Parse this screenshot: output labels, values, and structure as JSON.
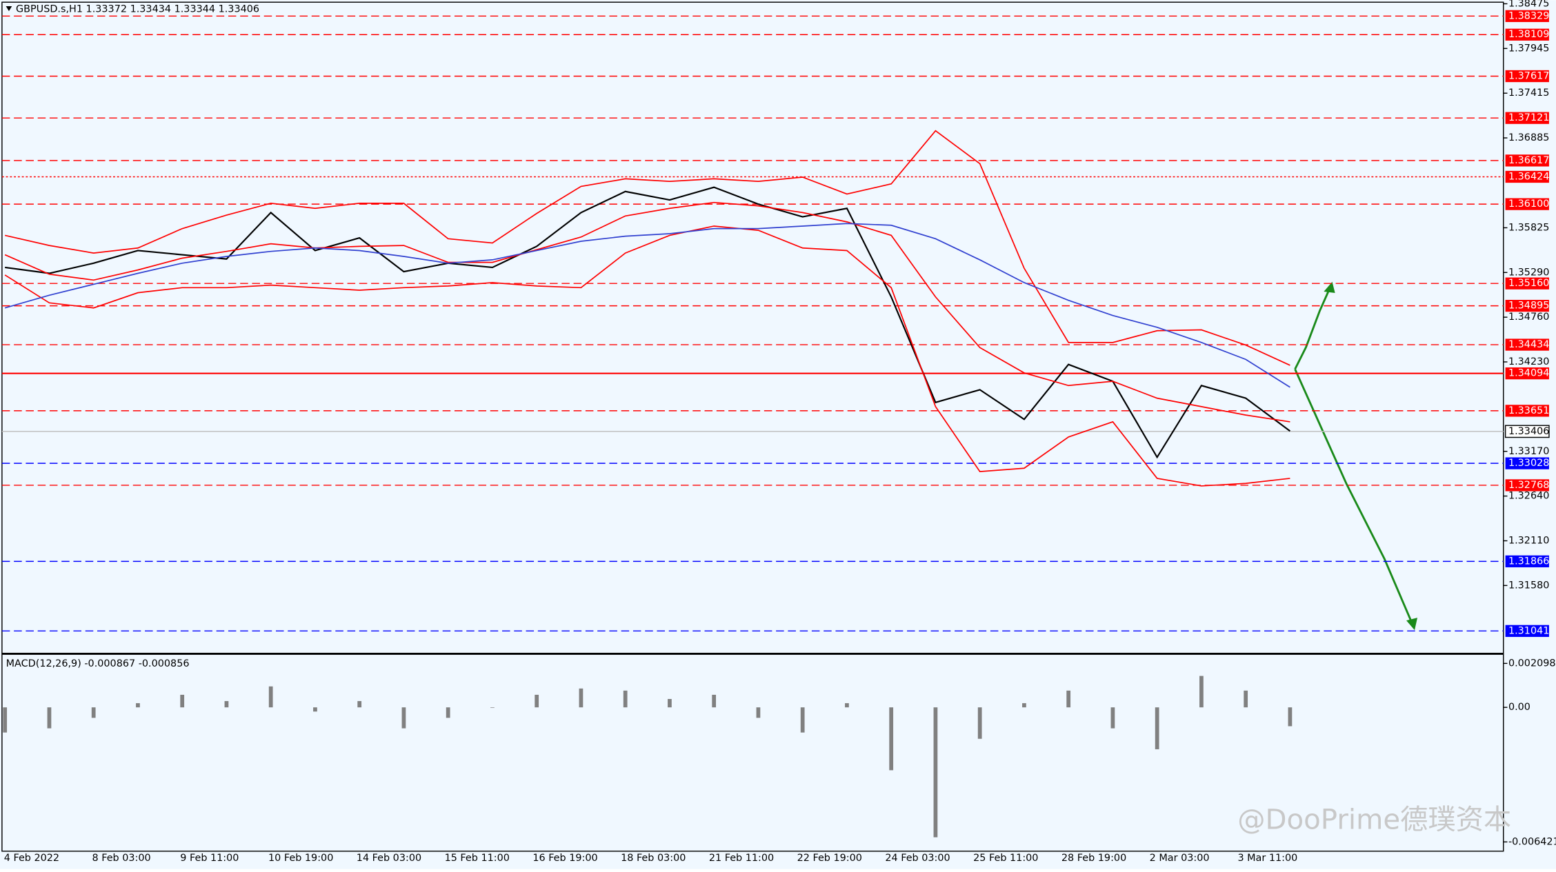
{
  "chart_data": {
    "type": "line",
    "title": "GBPUSD.s,H1  1.33372 1.33434 1.33344 1.33406",
    "categories": [
      null,
      null,
      null,
      null,
      null,
      null,
      null,
      null,
      null,
      null,
      null,
      null,
      null,
      null,
      null,
      null,
      null,
      null,
      null,
      null,
      null,
      null,
      null,
      null,
      null,
      null,
      null,
      null,
      null,
      null
    ],
    "x_labels": [
      "4 Feb 2022",
      "8 Feb 03:00",
      "9 Feb 11:00",
      "10 Feb 19:00",
      "14 Feb 03:00",
      "15 Feb 11:00",
      "16 Feb 19:00",
      "18 Feb 03:00",
      "21 Feb 11:00",
      "22 Feb 19:00",
      "24 Feb 03:00",
      "25 Feb 11:00",
      "28 Feb 19:00",
      "2 Mar 03:00",
      "3 Mar 11:00"
    ],
    "series": [
      {
        "color": "#000000",
        "values": [
          1.3535,
          1.3528,
          1.354,
          1.3555,
          1.355,
          1.3545,
          1.36,
          1.3555,
          1.357,
          1.353,
          1.354,
          1.3535,
          1.356,
          1.36,
          1.3625,
          1.3615,
          1.363,
          1.361,
          1.3595,
          1.3605,
          1.35,
          1.3375,
          1.339,
          1.3355,
          1.342,
          1.34,
          1.331,
          1.3395,
          1.338,
          1.3341
        ]
      },
      {
        "color": "#ff0000",
        "values": [
          1.3573,
          1.3561,
          1.3552,
          1.3558,
          1.3581,
          1.3597,
          1.3611,
          1.3605,
          1.3611,
          1.3611,
          1.3569,
          1.3564,
          1.3599,
          1.3631,
          1.364,
          1.3637,
          1.364,
          1.3637,
          1.3642,
          1.3622,
          1.3634,
          1.3697,
          1.3658,
          1.3534,
          1.3446,
          1.3446,
          1.346,
          1.3461,
          1.3443,
          1.3419
        ]
      },
      {
        "color": "#ff0000",
        "values": [
          1.355,
          1.3527,
          1.352,
          1.3532,
          1.3546,
          1.3554,
          1.3563,
          1.3558,
          1.356,
          1.3561,
          1.3541,
          1.3541,
          1.3556,
          1.3571,
          1.3596,
          1.3605,
          1.3612,
          1.3608,
          1.36,
          1.3589,
          1.3573,
          1.35,
          1.344,
          1.341,
          1.3395,
          1.34,
          1.338,
          1.337,
          1.336,
          1.3352
        ]
      },
      {
        "color": "#ff0000",
        "values": [
          1.3526,
          1.3493,
          1.3487,
          1.3505,
          1.3511,
          1.3511,
          1.3514,
          1.3511,
          1.3508,
          1.3511,
          1.3513,
          1.3517,
          1.3513,
          1.3511,
          1.3552,
          1.3573,
          1.3584,
          1.3579,
          1.3558,
          1.3555,
          1.3511,
          1.337,
          1.3293,
          1.3297,
          1.3334,
          1.3352,
          1.3285,
          1.3276,
          1.3279,
          1.3285
        ]
      },
      {
        "color": "#3040d0",
        "values": [
          1.3487,
          1.3502,
          1.3515,
          1.3528,
          1.354,
          1.3548,
          1.3554,
          1.3558,
          1.3555,
          1.3548,
          1.354,
          1.3544,
          1.3555,
          1.3566,
          1.3572,
          1.3575,
          1.3581,
          1.3581,
          1.3584,
          1.3587,
          1.3585,
          1.3569,
          1.3544,
          1.3517,
          1.3496,
          1.3478,
          1.3464,
          1.3446,
          1.3426,
          1.3393
        ]
      }
    ],
    "ylim": [
      1.30782,
      1.38517
    ],
    "yticks": [
      1.38475,
      1.37945,
      1.37415,
      1.36885,
      {
        "value": 1.3582,
        "label": "1.35825"
      },
      {
        "value": 1.3529,
        "label": "1.35290"
      },
      {
        "value": 1.3476,
        "label": "1.34760"
      },
      {
        "value": 1.3423,
        "label": "1.34230"
      },
      {
        "value": 1.3317,
        "label": "1.33170"
      },
      {
        "value": 1.3264,
        "label": "1.32640"
      },
      {
        "value": 1.3211,
        "label": "1.32110"
      },
      {
        "value": 1.3158,
        "label": "1.31580"
      }
    ],
    "levels": [
      {
        "value": 1.38329,
        "color": "#ff0000",
        "style": "dash"
      },
      {
        "value": 1.38109,
        "color": "#ff0000",
        "style": "dash"
      },
      {
        "value": 1.37617,
        "color": "#ff0000",
        "style": "dash"
      },
      {
        "value": 1.37121,
        "color": "#ff0000",
        "style": "dash"
      },
      {
        "value": 1.36617,
        "color": "#ff0000",
        "style": "dash"
      },
      {
        "value": 1.36424,
        "color": "#ff0000",
        "style": "dot"
      },
      {
        "value": 1.361,
        "label": "1.36100",
        "color": "#ff0000",
        "style": "dash"
      },
      {
        "value": 1.3516,
        "label": "1.35160",
        "color": "#ff0000",
        "style": "dash"
      },
      {
        "value": 1.34895,
        "color": "#ff0000",
        "style": "dash"
      },
      {
        "value": 1.34434,
        "color": "#ff0000",
        "style": "dash"
      },
      {
        "value": 1.34094,
        "color": "#ff0000",
        "style": "solid"
      },
      {
        "value": 1.33651,
        "color": "#ff0000",
        "style": "dash"
      },
      {
        "value": 1.33406,
        "color": "#c0c0c0",
        "style": "solid",
        "current": true
      },
      {
        "value": 1.33028,
        "color": "#0000ff",
        "style": "dash"
      },
      {
        "value": 1.32768,
        "color": "#ff0000",
        "style": "dash"
      },
      {
        "value": 1.31866,
        "color": "#0000ff",
        "style": "dash"
      },
      {
        "value": 1.31041,
        "color": "#0000ff",
        "style": "dash"
      }
    ],
    "macd": {
      "title": "MACD(12,26,9) -0.000867 -0.000856",
      "color": "#808080",
      "values": [
        -0.0012,
        -0.001,
        -0.0005,
        0.0002,
        0.0006,
        0.0003,
        0.001,
        -0.0002,
        0.0003,
        -0.001,
        -0.0005,
        0,
        0.0006,
        0.0009,
        0.0008,
        0.0004,
        0.0006,
        -0.0005,
        -0.0012,
        0.0002,
        -0.003,
        -0.0062,
        -0.0015,
        0.0002,
        0.0008,
        -0.001,
        -0.002,
        0.0015,
        0.0008,
        -0.0009
      ],
      "ylim": [
        -0.006768,
        0.002461
      ],
      "yticks": [
        0.002098,
        {
          "value": 0,
          "label": "0.00"
        },
        -0.006421
      ]
    },
    "watermark": "@DooPrime德璞资本"
  }
}
